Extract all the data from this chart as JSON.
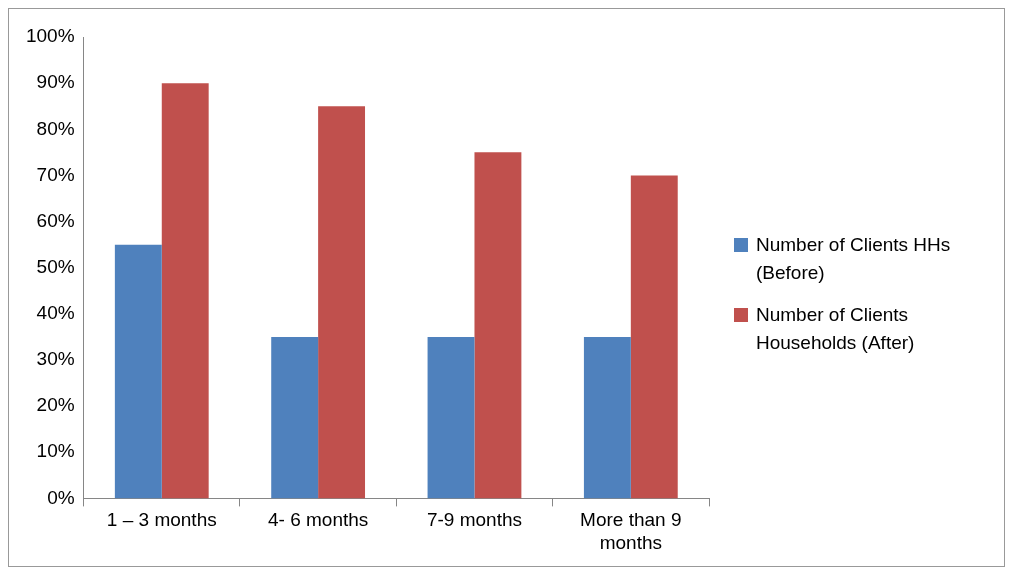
{
  "chart_data": {
    "type": "bar",
    "categories": [
      "1 – 3 months",
      "4- 6 months",
      "7-9 months",
      "More than 9 months"
    ],
    "series": [
      {
        "name": "Number of Clients HHs (Before)",
        "color": "#4f81bd",
        "values": [
          55,
          35,
          35,
          35
        ]
      },
      {
        "name": "Number of Clients Households (After)",
        "color": "#c0504d",
        "values": [
          90,
          85,
          75,
          70
        ]
      }
    ],
    "ylim": [
      0,
      100
    ],
    "yticks": [
      {
        "value": 0,
        "label": "0%"
      },
      {
        "value": 10,
        "label": "10%"
      },
      {
        "value": 20,
        "label": "20%"
      },
      {
        "value": 30,
        "label": "30%"
      },
      {
        "value": 40,
        "label": "40%"
      },
      {
        "value": 50,
        "label": "50%"
      },
      {
        "value": 60,
        "label": "60%"
      },
      {
        "value": 70,
        "label": "70%"
      },
      {
        "value": 80,
        "label": "80%"
      },
      {
        "value": 90,
        "label": "90%"
      },
      {
        "value": 100,
        "label": "100%"
      }
    ],
    "grid": false,
    "legend": "right"
  }
}
